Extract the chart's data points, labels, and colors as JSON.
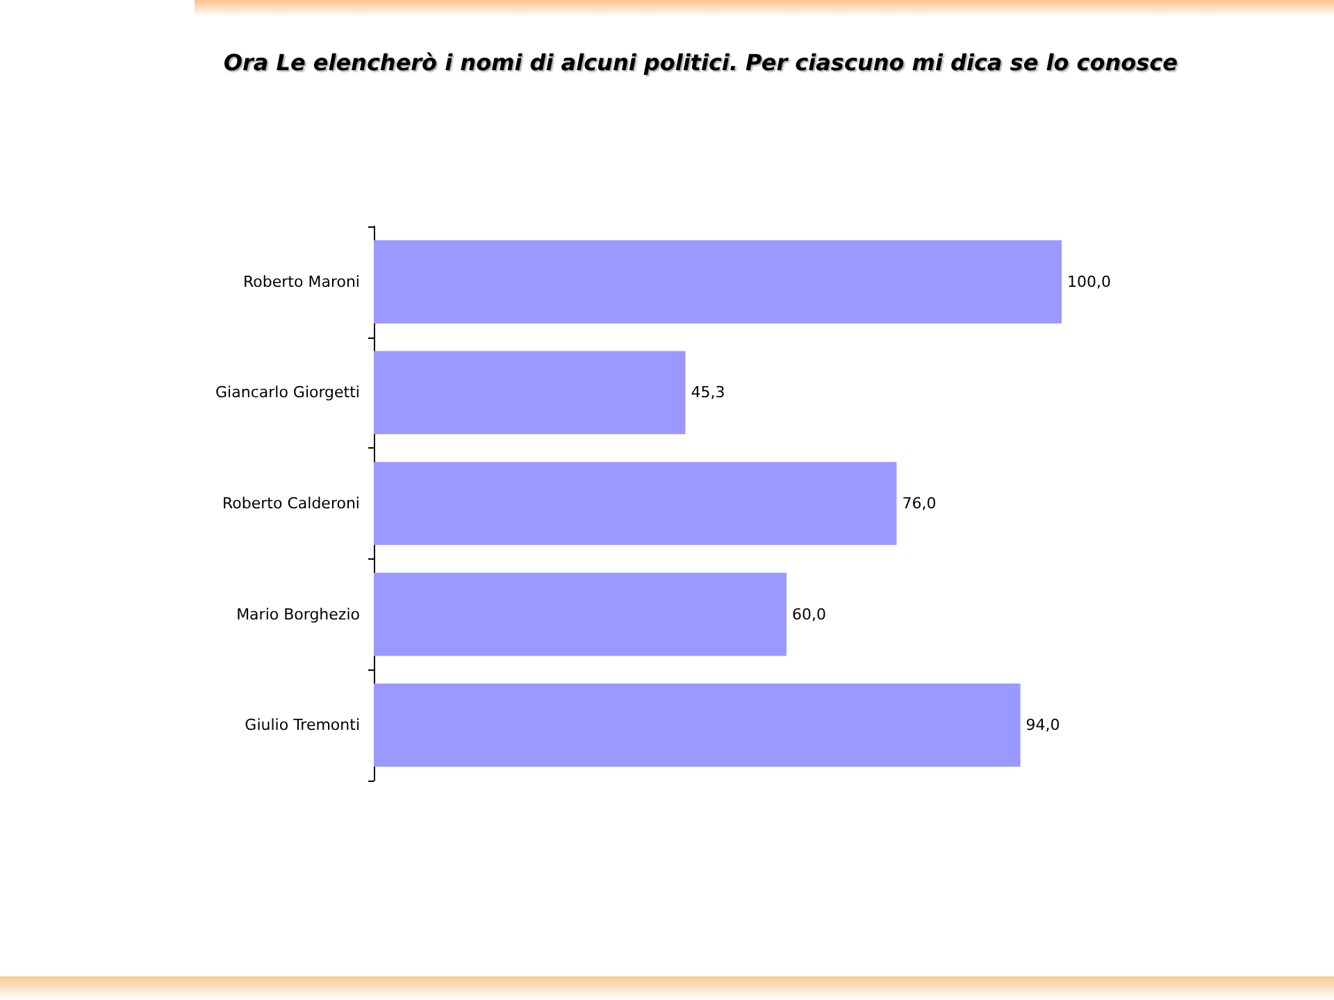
{
  "chart_data": {
    "type": "bar",
    "orientation": "horizontal",
    "title": "Ora Le elencherò i nomi di alcuni politici. Per ciascuno mi dica se lo conosce",
    "categories": [
      "Roberto Maroni",
      "Giancarlo Giorgetti",
      "Roberto Calderoni",
      "Mario Borghezio",
      "Giulio Tremonti"
    ],
    "values": [
      100,
      45.3,
      76,
      60,
      94
    ],
    "value_labels": [
      "100,0",
      "45,3",
      "76,0",
      "60,0",
      "94,0"
    ],
    "color": "#9999ff"
  }
}
